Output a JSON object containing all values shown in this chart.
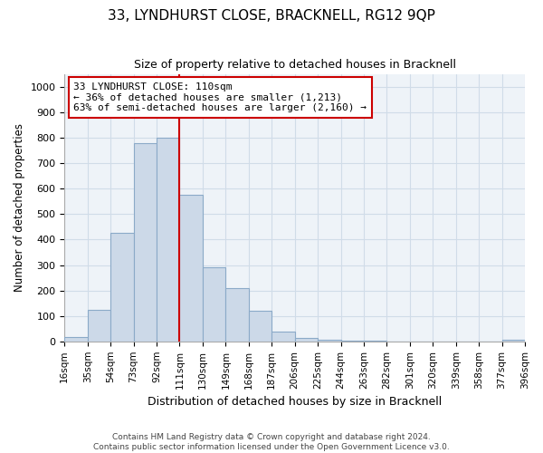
{
  "title": "33, LYNDHURST CLOSE, BRACKNELL, RG12 9QP",
  "subtitle": "Size of property relative to detached houses in Bracknell",
  "xlabel": "Distribution of detached houses by size in Bracknell",
  "ylabel": "Number of detached properties",
  "bin_labels": [
    "16sqm",
    "35sqm",
    "54sqm",
    "73sqm",
    "92sqm",
    "111sqm",
    "130sqm",
    "149sqm",
    "168sqm",
    "187sqm",
    "206sqm",
    "225sqm",
    "244sqm",
    "263sqm",
    "282sqm",
    "301sqm",
    "320sqm",
    "339sqm",
    "358sqm",
    "377sqm",
    "396sqm"
  ],
  "bar_values": [
    18,
    125,
    425,
    780,
    800,
    575,
    290,
    210,
    120,
    40,
    15,
    8,
    3,
    2,
    1,
    1,
    0,
    0,
    0,
    5
  ],
  "bar_color": "#ccd9e8",
  "bar_edge_color": "#8baac8",
  "vline_color": "#cc0000",
  "annotation_box_edge": "#cc0000",
  "annotation_line1": "33 LYNDHURST CLOSE: 110sqm",
  "annotation_line2": "← 36% of detached houses are smaller (1,213)",
  "annotation_line3": "63% of semi-detached houses are larger (2,160) →",
  "vline_position": 5,
  "ylim": [
    0,
    1050
  ],
  "yticks": [
    0,
    100,
    200,
    300,
    400,
    500,
    600,
    700,
    800,
    900,
    1000
  ],
  "grid_color": "#d0dce8",
  "background_color": "#eef3f8",
  "footer_line1": "Contains HM Land Registry data © Crown copyright and database right 2024.",
  "footer_line2": "Contains public sector information licensed under the Open Government Licence v3.0."
}
